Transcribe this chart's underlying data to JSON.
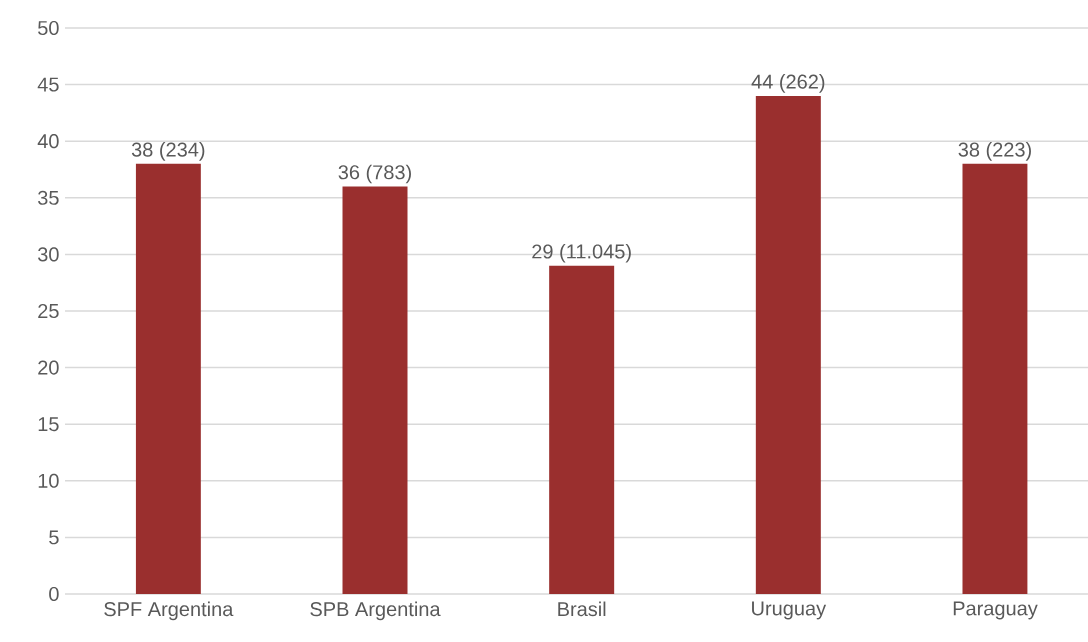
{
  "chart_data": {
    "type": "bar",
    "categories": [
      "SPF Argentina",
      "SPB Argentina",
      "Brasil",
      "Uruguay",
      "Paraguay"
    ],
    "values": [
      38,
      36,
      29,
      44,
      38
    ],
    "value_labels": [
      "38 (234)",
      "36 (783)",
      "29 (11.045)",
      "44 (262)",
      "38 (223)"
    ],
    "color": "#9a2f2e",
    "ylim": [
      0,
      50
    ],
    "yticks": [
      0,
      5,
      10,
      15,
      20,
      25,
      30,
      35,
      40,
      45,
      50
    ],
    "grid": "y"
  }
}
